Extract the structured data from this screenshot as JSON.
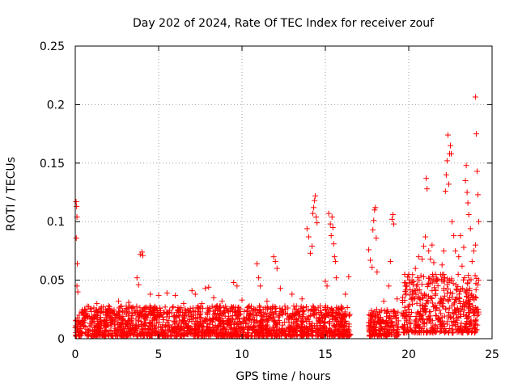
{
  "chart_data": {
    "type": "scatter",
    "title": "Day 202 of 2024, Rate Of TEC Index for receiver zouf",
    "xlabel": "GPS time / hours",
    "ylabel": "ROTI / TECUs",
    "xlim": [
      0,
      25
    ],
    "ylim": [
      0,
      0.25
    ],
    "xticks": [
      0,
      5,
      10,
      15,
      20,
      25
    ],
    "xtick_labels": [
      "0",
      "5",
      "10",
      "15",
      "20",
      "25"
    ],
    "yticks": [
      0,
      0.05,
      0.1,
      0.15,
      0.2,
      0.25
    ],
    "ytick_labels": [
      "0",
      "0.05",
      "0.1",
      "0.15",
      "0.2",
      "0.25"
    ],
    "grid": true,
    "marker": "+",
    "color": "#ff0000",
    "series": [
      {
        "name": "ROTI",
        "points": [
          [
            0.05,
            0.117
          ],
          [
            0.08,
            0.113
          ],
          [
            0.1,
            0.104
          ],
          [
            0.06,
            0.086
          ],
          [
            0.12,
            0.064
          ],
          [
            0.1,
            0.045
          ],
          [
            0.15,
            0.04
          ],
          [
            1.3,
            0.03
          ],
          [
            2.0,
            0.028
          ],
          [
            2.6,
            0.032
          ],
          [
            3.2,
            0.031
          ],
          [
            3.7,
            0.052
          ],
          [
            3.8,
            0.046
          ],
          [
            3.9,
            0.072
          ],
          [
            4.0,
            0.074
          ],
          [
            4.05,
            0.071
          ],
          [
            4.5,
            0.038
          ],
          [
            5.0,
            0.037
          ],
          [
            5.5,
            0.039
          ],
          [
            6.0,
            0.037
          ],
          [
            6.5,
            0.03
          ],
          [
            7.0,
            0.041
          ],
          [
            7.2,
            0.038
          ],
          [
            7.6,
            0.03
          ],
          [
            7.8,
            0.043
          ],
          [
            8.0,
            0.044
          ],
          [
            8.3,
            0.035
          ],
          [
            8.8,
            0.032
          ],
          [
            9.5,
            0.048
          ],
          [
            9.7,
            0.045
          ],
          [
            10.0,
            0.033
          ],
          [
            10.9,
            0.064
          ],
          [
            11.0,
            0.052
          ],
          [
            11.1,
            0.045
          ],
          [
            11.5,
            0.032
          ],
          [
            11.9,
            0.07
          ],
          [
            12.0,
            0.066
          ],
          [
            12.1,
            0.06
          ],
          [
            12.3,
            0.043
          ],
          [
            13.0,
            0.038
          ],
          [
            13.6,
            0.034
          ],
          [
            13.9,
            0.094
          ],
          [
            14.0,
            0.087
          ],
          [
            14.1,
            0.073
          ],
          [
            14.2,
            0.079
          ],
          [
            14.25,
            0.107
          ],
          [
            14.3,
            0.112
          ],
          [
            14.35,
            0.118
          ],
          [
            14.4,
            0.122
          ],
          [
            14.45,
            0.104
          ],
          [
            14.5,
            0.099
          ],
          [
            15.0,
            0.049
          ],
          [
            15.1,
            0.045
          ],
          [
            15.2,
            0.107
          ],
          [
            15.3,
            0.098
          ],
          [
            15.35,
            0.088
          ],
          [
            15.4,
            0.104
          ],
          [
            15.45,
            0.095
          ],
          [
            15.5,
            0.081
          ],
          [
            15.55,
            0.07
          ],
          [
            15.6,
            0.066
          ],
          [
            15.65,
            0.052
          ],
          [
            16.2,
            0.038
          ],
          [
            16.4,
            0.053
          ],
          [
            17.6,
            0.076
          ],
          [
            17.7,
            0.067
          ],
          [
            17.8,
            0.061
          ],
          [
            17.85,
            0.093
          ],
          [
            17.9,
            0.101
          ],
          [
            17.95,
            0.11
          ],
          [
            18.0,
            0.112
          ],
          [
            18.05,
            0.086
          ],
          [
            18.1,
            0.057
          ],
          [
            18.5,
            0.032
          ],
          [
            18.8,
            0.045
          ],
          [
            18.9,
            0.066
          ],
          [
            19.0,
            0.102
          ],
          [
            19.05,
            0.106
          ],
          [
            19.1,
            0.098
          ],
          [
            19.3,
            0.034
          ],
          [
            19.8,
            0.045
          ],
          [
            20.0,
            0.055
          ],
          [
            20.2,
            0.05
          ],
          [
            20.4,
            0.06
          ],
          [
            20.6,
            0.07
          ],
          [
            20.8,
            0.068
          ],
          [
            20.9,
            0.079
          ],
          [
            21.0,
            0.087
          ],
          [
            21.05,
            0.137
          ],
          [
            21.1,
            0.128
          ],
          [
            21.2,
            0.075
          ],
          [
            21.3,
            0.068
          ],
          [
            21.4,
            0.08
          ],
          [
            21.5,
            0.065
          ],
          [
            21.6,
            0.055
          ],
          [
            22.0,
            0.063
          ],
          [
            22.1,
            0.075
          ],
          [
            22.2,
            0.126
          ],
          [
            22.25,
            0.14
          ],
          [
            22.3,
            0.152
          ],
          [
            22.35,
            0.174
          ],
          [
            22.4,
            0.132
          ],
          [
            22.45,
            0.158
          ],
          [
            22.5,
            0.165
          ],
          [
            22.55,
            0.158
          ],
          [
            22.6,
            0.1
          ],
          [
            22.7,
            0.088
          ],
          [
            22.8,
            0.075
          ],
          [
            23.0,
            0.07
          ],
          [
            23.1,
            0.088
          ],
          [
            23.2,
            0.062
          ],
          [
            23.3,
            0.078
          ],
          [
            23.4,
            0.135
          ],
          [
            23.45,
            0.148
          ],
          [
            23.5,
            0.125
          ],
          [
            23.55,
            0.116
          ],
          [
            23.6,
            0.106
          ],
          [
            23.7,
            0.094
          ],
          [
            23.8,
            0.066
          ],
          [
            23.9,
            0.075
          ],
          [
            24.0,
            0.2065
          ],
          [
            24.05,
            0.175
          ],
          [
            24.1,
            0.143
          ],
          [
            24.15,
            0.123
          ],
          [
            24.2,
            0.1
          ],
          [
            24.0,
            0.08
          ]
        ]
      }
    ],
    "dense_bands": [
      {
        "x_start": 0.0,
        "x_end": 16.5,
        "y_min": 0.002,
        "y_max": 0.028
      },
      {
        "x_start": 17.6,
        "x_end": 19.4,
        "y_min": 0.002,
        "y_max": 0.025
      },
      {
        "x_start": 19.6,
        "x_end": 24.2,
        "y_min": 0.005,
        "y_max": 0.055
      }
    ]
  }
}
